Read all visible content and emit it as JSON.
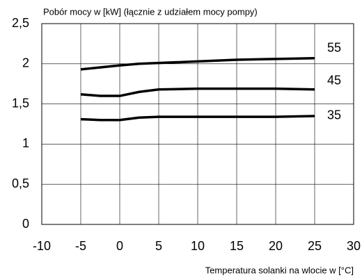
{
  "chart_data": {
    "type": "line",
    "title": "Pobór mocy w [kW] (łącznie z udziałem mocy pompy)",
    "x_label": "Temperatura solanki na wlocie w [°C]",
    "x": [
      -5,
      -2.5,
      0,
      2.5,
      5,
      10,
      15,
      20,
      25
    ],
    "series": [
      {
        "name": "55",
        "color": "#000000",
        "values": [
          1.93,
          1.955,
          1.98,
          2.0,
          2.01,
          2.03,
          2.05,
          2.06,
          2.07
        ]
      },
      {
        "name": "45",
        "color": "#000000",
        "values": [
          1.62,
          1.6,
          1.6,
          1.65,
          1.68,
          1.69,
          1.69,
          1.69,
          1.68
        ]
      },
      {
        "name": "35",
        "color": "#000000",
        "values": [
          1.31,
          1.3,
          1.3,
          1.33,
          1.34,
          1.34,
          1.34,
          1.34,
          1.35
        ]
      }
    ],
    "xlim": [
      -10,
      30
    ],
    "xticks": [
      -10,
      -5,
      0,
      5,
      10,
      15,
      20,
      25,
      30
    ],
    "ylim": [
      0,
      2.5
    ],
    "yticks": [
      0,
      {
        "value": 0.5,
        "label": "0,5"
      },
      1,
      {
        "value": 1.5,
        "label": "1,5"
      },
      2,
      {
        "value": 2.5,
        "label": "2,5"
      }
    ],
    "grid": true
  }
}
